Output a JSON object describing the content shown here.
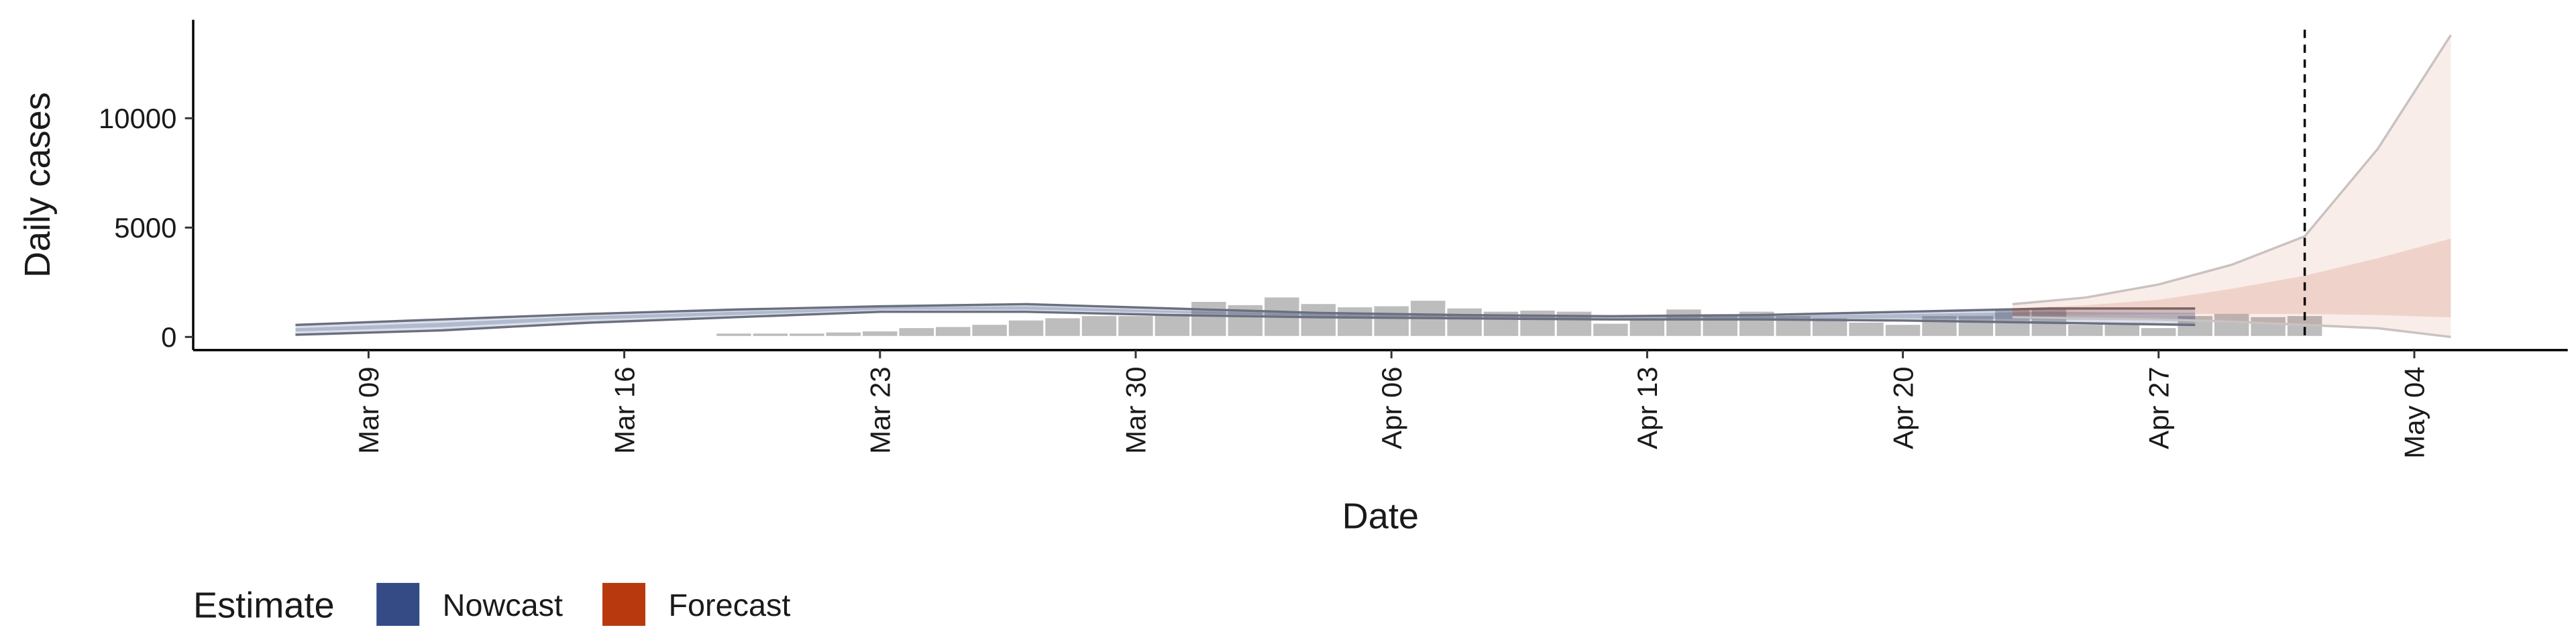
{
  "chart_data": {
    "type": "bar-ribbon",
    "ylabel": "Daily cases",
    "xlabel": "Date",
    "legend_title": "Estimate",
    "legend_position": "bottom-left",
    "ylim": [
      -600,
      14500
    ],
    "yticks": [
      0,
      5000,
      10000
    ],
    "xticks": [
      "Mar 09",
      "Mar 16",
      "Mar 23",
      "Mar 30",
      "Apr 06",
      "Apr 13",
      "Apr 20",
      "Apr 27",
      "May 04"
    ],
    "vline": "May 01",
    "bars": {
      "color": "#bdbdbd",
      "x": [
        "Mar 19",
        "Mar 20",
        "Mar 21",
        "Mar 22",
        "Mar 23",
        "Mar 24",
        "Mar 25",
        "Mar 26",
        "Mar 27",
        "Mar 28",
        "Mar 29",
        "Mar 30",
        "Mar 31",
        "Apr 01",
        "Apr 02",
        "Apr 03",
        "Apr 04",
        "Apr 05",
        "Apr 06",
        "Apr 07",
        "Apr 08",
        "Apr 09",
        "Apr 10",
        "Apr 11",
        "Apr 12",
        "Apr 13",
        "Apr 14",
        "Apr 15",
        "Apr 16",
        "Apr 17",
        "Apr 18",
        "Apr 19",
        "Apr 20",
        "Apr 21",
        "Apr 22",
        "Apr 23",
        "Apr 24",
        "Apr 25",
        "Apr 26",
        "Apr 27",
        "Apr 28",
        "Apr 29",
        "Apr 30",
        "May 01"
      ],
      "values": [
        200,
        200,
        200,
        250,
        300,
        450,
        500,
        600,
        800,
        900,
        1000,
        1000,
        1100,
        1650,
        1500,
        1850,
        1550,
        1400,
        1450,
        1700,
        1350,
        1200,
        1250,
        1200,
        650,
        900,
        1300,
        1000,
        1200,
        1000,
        900,
        700,
        600,
        1000,
        1000,
        1300,
        1350,
        600,
        600,
        450,
        1000,
        1100,
        950,
        1000
      ]
    },
    "series": [
      {
        "name": "Nowcast",
        "color": "#344b85",
        "x": [
          "Mar 07",
          "Mar 11",
          "Mar 15",
          "Mar 19",
          "Mar 23",
          "Mar 27",
          "Mar 31",
          "Apr 04",
          "Apr 08",
          "Apr 12",
          "Apr 16",
          "Apr 20",
          "Apr 24",
          "Apr 28"
        ],
        "outer_lower": [
          100,
          300,
          650,
          900,
          1150,
          1150,
          1000,
          900,
          850,
          800,
          800,
          750,
          650,
          550
        ],
        "outer_upper": [
          550,
          800,
          1050,
          1250,
          1400,
          1500,
          1300,
          1100,
          1000,
          950,
          1000,
          1150,
          1300,
          1300
        ],
        "inner_lower": [
          250,
          450,
          800,
          1000,
          1250,
          1250,
          1100,
          950,
          900,
          850,
          850,
          850,
          800,
          750
        ],
        "inner_upper": [
          400,
          650,
          950,
          1150,
          1350,
          1400,
          1200,
          1050,
          950,
          900,
          950,
          1050,
          1150,
          1100
        ]
      },
      {
        "name": "Forecast",
        "color": "#b8390e",
        "x": [
          "Apr 23",
          "Apr 25",
          "Apr 27",
          "Apr 29",
          "May 01",
          "May 03",
          "May 05"
        ],
        "outer_lower": [
          900,
          850,
          800,
          700,
          550,
          400,
          0
        ],
        "outer_upper": [
          1500,
          1800,
          2400,
          3300,
          4600,
          8600,
          13800
        ],
        "inner_lower": [
          1000,
          1000,
          1050,
          1050,
          1050,
          1000,
          900
        ],
        "inner_upper": [
          1300,
          1450,
          1700,
          2200,
          2800,
          3600,
          4500
        ]
      }
    ]
  }
}
